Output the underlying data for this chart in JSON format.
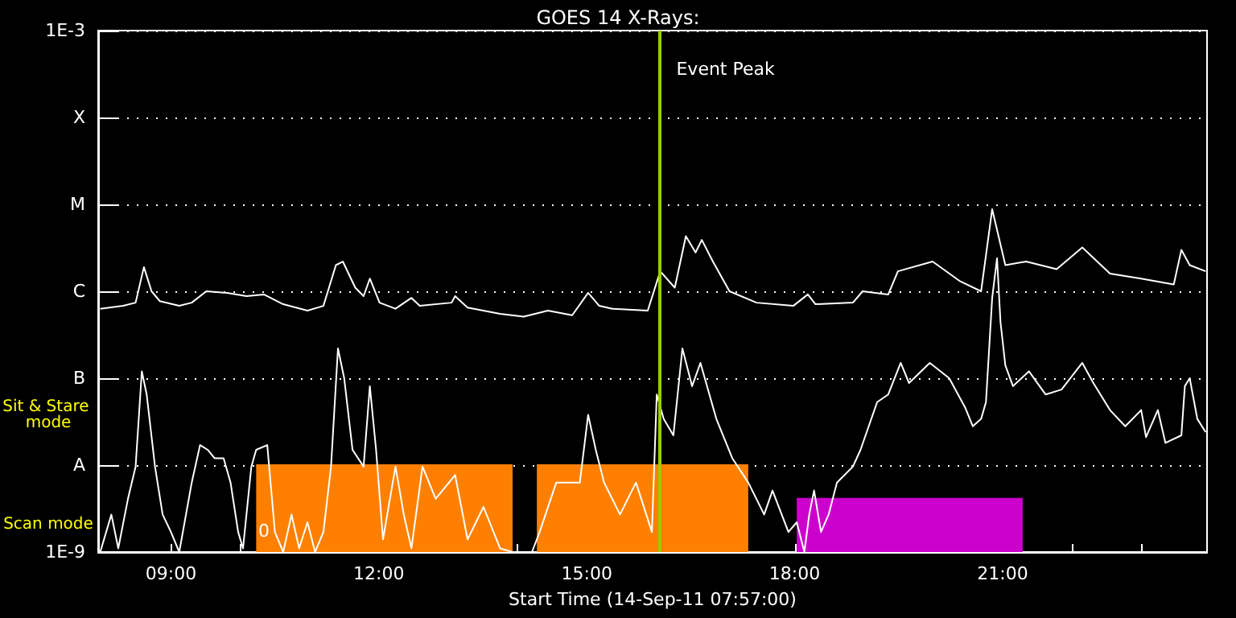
{
  "chart_data": {
    "type": "line",
    "title": "GOES 14 X-Rays:",
    "xlabel": "Start Time (14-Sep-11 07:57:00)",
    "xlim": [
      7.95,
      23.95
    ],
    "xticks": [
      {
        "value": 9,
        "label": "09:00"
      },
      {
        "value": 10,
        "label": null
      },
      {
        "value": 11,
        "label": null
      },
      {
        "value": 12,
        "label": "12:00"
      },
      {
        "value": 13,
        "label": null
      },
      {
        "value": 14,
        "label": null
      },
      {
        "value": 15,
        "label": "15:00"
      },
      {
        "value": 16,
        "label": null
      },
      {
        "value": 17,
        "label": null
      },
      {
        "value": 18,
        "label": "18:00"
      },
      {
        "value": 19,
        "label": null
      },
      {
        "value": 20,
        "label": null
      },
      {
        "value": 21,
        "label": "21:00"
      },
      {
        "value": 22,
        "label": null
      },
      {
        "value": 23,
        "label": null
      }
    ],
    "ylim": [
      1e-09,
      0.001
    ],
    "yticks": [
      {
        "value": 1e-09,
        "label": "1E-9"
      },
      {
        "value": 1e-08,
        "label": "A"
      },
      {
        "value": 1e-07,
        "label": "B"
      },
      {
        "value": 1e-06,
        "label": "C"
      },
      {
        "value": 1e-05,
        "label": "M"
      },
      {
        "value": 0.0001,
        "label": "X"
      },
      {
        "value": 0.001,
        "label": "1E-3"
      }
    ],
    "log": "y",
    "grid": "y",
    "marker": "none",
    "line_style": "solid",
    "series": [
      {
        "type": "area",
        "color": "#ff8000",
        "x": [
          10.23,
          13.93
        ],
        "values": [
          1e-08,
          1e-08
        ]
      },
      {
        "type": "area",
        "color": "#ff8000",
        "x": [
          14.28,
          17.33
        ],
        "values": [
          1e-08,
          1e-08
        ]
      },
      {
        "type": "area",
        "color": "#cc00cc",
        "x": [
          18.03,
          21.29
        ],
        "values": [
          4.1e-09,
          4.1e-09
        ]
      },
      {
        "color": "#ffffff",
        "x": [
          7.98,
          8.31,
          8.49,
          8.61,
          8.72,
          8.84,
          9.12,
          9.3,
          9.51,
          9.81,
          10.09,
          10.34,
          10.62,
          10.97,
          11.2,
          11.38,
          11.48,
          11.66,
          11.78,
          11.87,
          12.01,
          12.24,
          12.47,
          12.59,
          13.05,
          13.1,
          13.28,
          13.75,
          14.09,
          14.44,
          14.79,
          15.02,
          15.18,
          15.37,
          15.88,
          16.06,
          16.27,
          16.43,
          16.57,
          16.66,
          16.82,
          17.06,
          17.45,
          17.98,
          18.19,
          18.3,
          18.84,
          18.98,
          19.35,
          19.49,
          19.99,
          20.39,
          20.69,
          20.85,
          21.04,
          21.34,
          21.78,
          22.15,
          22.55,
          23.0,
          23.47,
          23.58,
          23.7,
          23.93
        ],
        "values": [
          6.3e-07,
          6.8e-07,
          7.4e-07,
          1.9e-06,
          1e-06,
          7.7e-07,
          6.8e-07,
          7.4e-07,
          1e-06,
          9.6e-07,
          8.8e-07,
          9.2e-07,
          7.1e-07,
          6e-07,
          6.8e-07,
          2e-06,
          2.2e-06,
          1.1e-06,
          8.8e-07,
          1.4e-06,
          7.4e-07,
          6.3e-07,
          8.4e-07,
          6.8e-07,
          7.4e-07,
          8.8e-07,
          6.5e-07,
          5.5e-07,
          5.1e-07,
          6e-07,
          5.3e-07,
          9.6e-07,
          6.8e-07,
          6.3e-07,
          6e-07,
          1.7e-06,
          1.1e-06,
          4.3e-06,
          2.8e-06,
          3.9e-06,
          2.2e-06,
          1e-06,
          7.4e-07,
          6.8e-07,
          9.2e-07,
          7.1e-07,
          7.4e-07,
          1e-06,
          9.2e-07,
          1.7e-06,
          2.2e-06,
          1.3e-06,
          1e-06,
          8.8e-06,
          2e-06,
          2.2e-06,
          1.8e-06,
          3.2e-06,
          1.6e-06,
          1.4e-06,
          1.2e-06,
          3e-06,
          2e-06,
          1.7e-06
        ]
      },
      {
        "color": "#ffffff",
        "x": [
          7.98,
          8.14,
          8.24,
          8.38,
          8.49,
          8.58,
          8.65,
          8.77,
          8.88,
          9.0,
          9.12,
          9.3,
          9.42,
          9.53,
          9.63,
          9.76,
          9.86,
          9.97,
          10.04,
          10.16,
          10.23,
          10.39,
          10.5,
          10.62,
          10.74,
          10.85,
          10.97,
          11.08,
          11.2,
          11.31,
          11.41,
          11.5,
          11.62,
          11.78,
          11.87,
          11.96,
          12.06,
          12.24,
          12.36,
          12.47,
          12.63,
          12.82,
          13.1,
          13.28,
          13.51,
          13.75,
          13.93,
          14.21,
          14.32,
          14.56,
          14.9,
          15.02,
          15.13,
          15.25,
          15.48,
          15.71,
          15.94,
          16.01,
          16.11,
          16.25,
          16.38,
          16.52,
          16.64,
          16.87,
          17.1,
          17.33,
          17.56,
          17.68,
          17.91,
          18.03,
          18.14,
          18.21,
          18.28,
          18.38,
          18.49,
          18.61,
          18.84,
          18.95,
          19.19,
          19.35,
          19.53,
          19.65,
          19.95,
          20.23,
          20.46,
          20.57,
          20.69,
          20.76,
          20.85,
          20.92,
          20.97,
          21.04,
          21.15,
          21.38,
          21.62,
          21.85,
          22.15,
          22.31,
          22.55,
          22.77,
          23.0,
          23.07,
          23.24,
          23.35,
          23.58,
          23.63,
          23.7,
          23.81,
          23.93
        ],
        "values": [
          1e-09,
          2.7e-09,
          1.1e-09,
          4.1e-09,
          9.6e-09,
          1.2e-07,
          6.5e-08,
          9.6e-09,
          2.7e-09,
          1.7e-09,
          1e-09,
          6.3e-09,
          1.7e-08,
          1.5e-08,
          1.2e-08,
          1.2e-08,
          6.3e-09,
          1.7e-09,
          1.1e-09,
          9.6e-09,
          1.5e-08,
          1.7e-08,
          1.7e-09,
          1e-09,
          2.7e-09,
          1.1e-09,
          2.2e-09,
          1e-09,
          1.7e-09,
          9.6e-09,
          2.2e-07,
          1e-07,
          1.5e-08,
          9.6e-09,
          8.1e-08,
          1.5e-08,
          1.4e-09,
          9.6e-09,
          2.7e-09,
          1.1e-09,
          9.6e-09,
          4.1e-09,
          7.7e-09,
          1.4e-09,
          3.3e-09,
          1.1e-09,
          1e-09,
          1e-09,
          1.7e-09,
          6.3e-09,
          6.3e-09,
          3.8e-08,
          1.5e-08,
          6.3e-09,
          2.7e-09,
          6.3e-09,
          1.7e-09,
          6.5e-08,
          3.4e-08,
          2.2e-08,
          2.2e-07,
          8.1e-08,
          1.5e-07,
          3.4e-08,
          1.2e-08,
          6.3e-09,
          2.7e-09,
          5.1e-09,
          1.7e-09,
          2.2e-09,
          1e-09,
          2.7e-09,
          5.1e-09,
          1.7e-09,
          2.7e-09,
          6.3e-09,
          9.6e-09,
          1.5e-08,
          5.3e-08,
          6.5e-08,
          1.5e-07,
          8.8e-08,
          1.5e-07,
          1e-07,
          4.6e-08,
          2.8e-08,
          3.4e-08,
          5.3e-08,
          8.4e-07,
          2.4e-06,
          4.4e-07,
          1.4e-07,
          8.1e-08,
          1.2e-07,
          6.5e-08,
          7.4e-08,
          1.5e-07,
          8.8e-08,
          4.3e-08,
          2.8e-08,
          4.3e-08,
          2.1e-08,
          4.3e-08,
          1.8e-08,
          2.2e-08,
          8.1e-08,
          1e-07,
          3.4e-08,
          2.4e-08
        ]
      }
    ],
    "ref_lines": [
      {
        "axis": "x",
        "value": 16.06,
        "label": "Event Peak",
        "color": "#99cc00"
      }
    ],
    "annotations": [
      "Sit & Stare mode",
      "Scan mode",
      "0"
    ]
  }
}
